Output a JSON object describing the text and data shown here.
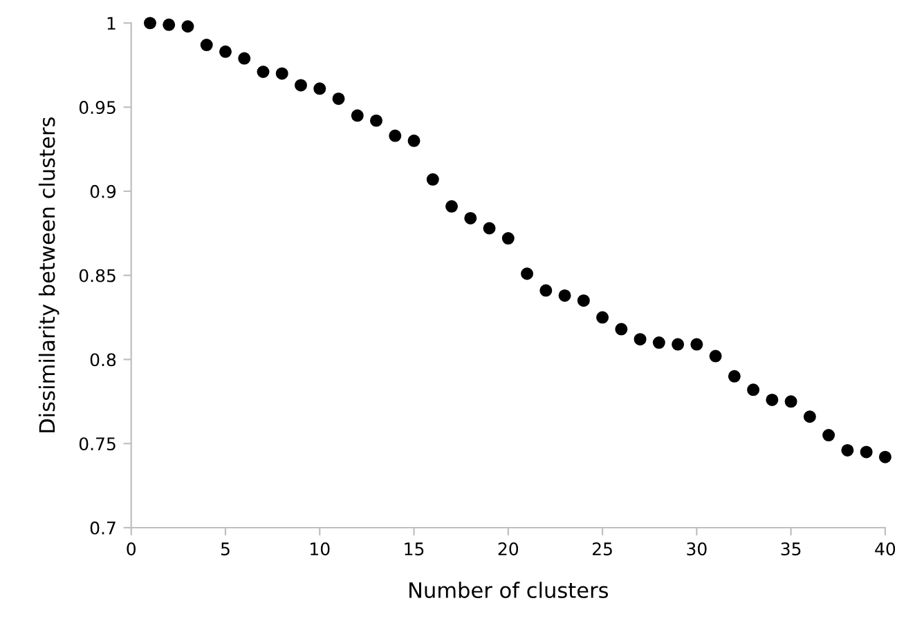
{
  "chart_data": {
    "type": "scatter",
    "xlabel": "Number of clusters",
    "ylabel": "Dissimilarity between clusters",
    "x": [
      1,
      2,
      3,
      4,
      5,
      6,
      7,
      8,
      9,
      10,
      11,
      12,
      13,
      14,
      15,
      16,
      17,
      18,
      19,
      20,
      21,
      22,
      23,
      24,
      25,
      26,
      27,
      28,
      29,
      30,
      31,
      32,
      33,
      34,
      35,
      36,
      37,
      38,
      39,
      40
    ],
    "series": [
      {
        "color": "#000000",
        "values": [
          1.0,
          0.999,
          0.998,
          0.987,
          0.983,
          0.979,
          0.971,
          0.97,
          0.963,
          0.961,
          0.955,
          0.945,
          0.942,
          0.933,
          0.93,
          0.907,
          0.891,
          0.884,
          0.878,
          0.872,
          0.851,
          0.841,
          0.838,
          0.835,
          0.825,
          0.818,
          0.812,
          0.81,
          0.809,
          0.809,
          0.802,
          0.79,
          0.782,
          0.776,
          0.775,
          0.766,
          0.755,
          0.746,
          0.745,
          0.742
        ]
      }
    ],
    "xlim": [
      0,
      40
    ],
    "ylim": [
      0.7,
      1
    ],
    "xticks": [
      0,
      5,
      10,
      15,
      20,
      25,
      30,
      35,
      40
    ],
    "yticks": [
      0.7,
      0.75,
      0.8,
      0.85,
      0.9,
      0.95,
      1
    ],
    "grid": false,
    "marker": "circle"
  }
}
